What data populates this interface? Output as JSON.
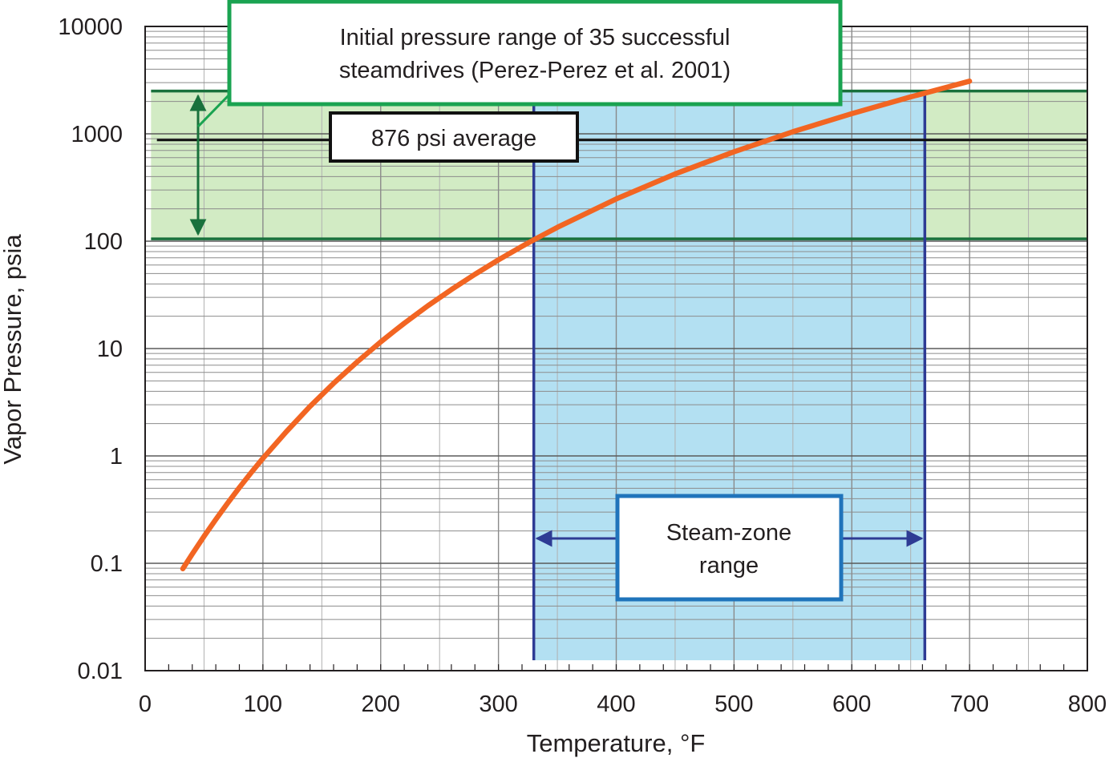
{
  "chart_data": {
    "type": "line",
    "title": "",
    "xlabel": "Temperature, °F",
    "ylabel": "Vapor Pressure, psia",
    "xlim": [
      0,
      800
    ],
    "ylim": [
      0.01,
      10000
    ],
    "y_scale": "log",
    "grid": true,
    "x_ticks": [
      0,
      100,
      200,
      300,
      400,
      500,
      600,
      700,
      800
    ],
    "x_tick_labels": [
      "0",
      "100",
      "200",
      "300",
      "400",
      "500",
      "600",
      "700",
      "800"
    ],
    "y_ticks": [
      0.01,
      0.1,
      1,
      10,
      100,
      1000,
      10000
    ],
    "y_tick_labels": [
      "0.01",
      "0.1",
      "1",
      "10",
      "100",
      "1000",
      "10000"
    ],
    "series": [
      {
        "color": "#f26522",
        "x": [
          32,
          40,
          50,
          60,
          70,
          80,
          90,
          100,
          120,
          140,
          160,
          180,
          200,
          212,
          220,
          240,
          260,
          280,
          300,
          320,
          330,
          350,
          400,
          450,
          500,
          550,
          600,
          650,
          700
        ],
        "y": [
          0.089,
          0.122,
          0.178,
          0.256,
          0.363,
          0.507,
          0.698,
          0.949,
          1.69,
          2.89,
          4.74,
          7.51,
          11.53,
          14.7,
          17.19,
          24.97,
          35.43,
          49.2,
          67.01,
          89.66,
          103.0,
          134.6,
          247.3,
          422.6,
          680.9,
          1045.0,
          1543.0,
          2208.0,
          3094.0
        ]
      }
    ],
    "bands": [
      {
        "kind": "horizontal",
        "y_range": [
          105,
          2500
        ],
        "x_range": [
          5,
          800
        ],
        "color": "#d2ebc4",
        "edge_color": "#19713c"
      },
      {
        "kind": "vertical",
        "x_range": [
          330,
          662
        ],
        "y_range": [
          0.0125,
          2500
        ],
        "color": "#b3e0f2",
        "edge_color": "#2e3b94"
      }
    ],
    "reference_lines": [
      {
        "y": 876,
        "x_range": [
          10,
          800
        ],
        "color": "#111111"
      }
    ],
    "annotations": {
      "range_box": {
        "text_line1": "Initial pressure range of 35 successful",
        "text_line2": "steamdrives (Perez-Perez et al. 2001)",
        "border_color": "#1aa351"
      },
      "average_box": {
        "text": "876 psi average",
        "border_color": "#111111"
      },
      "steam_box": {
        "text_line1": "Steam-zone",
        "text_line2": "range",
        "border_color": "#2074bb"
      }
    }
  }
}
